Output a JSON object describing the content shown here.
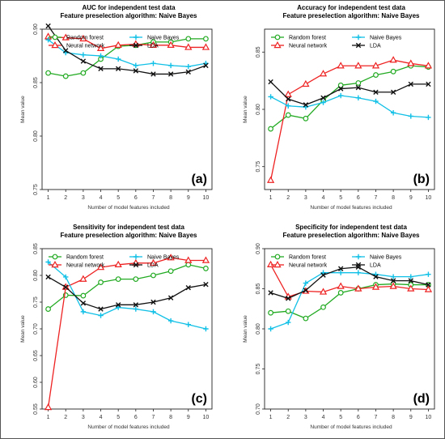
{
  "chart_data": [
    {
      "type": "line",
      "title": "AUC for independent test data",
      "subtitle": "Feature preselection algorithm: Naive Bayes",
      "xlabel": "Number of model features included",
      "ylabel": "Mean value",
      "panel_label": "(a)",
      "x": [
        1,
        2,
        3,
        4,
        5,
        6,
        7,
        8,
        9,
        10
      ],
      "ylim": [
        0.75,
        0.9
      ],
      "yticks": [
        "0.75",
        "0.80",
        "0.85",
        "0.90"
      ],
      "legend_position": "top",
      "grid": false,
      "series": [
        {
          "name": "Random forest",
          "color": "#22aa22",
          "marker": "circle",
          "values": [
            0.859,
            0.856,
            0.859,
            0.872,
            0.884,
            0.885,
            0.888,
            0.888,
            0.891,
            0.891
          ]
        },
        {
          "name": "Neural network",
          "color": "#ee2222",
          "marker": "triangle",
          "values": [
            0.893,
            0.892,
            0.891,
            0.882,
            0.885,
            0.886,
            0.885,
            0.885,
            0.883,
            0.883
          ]
        },
        {
          "name": "Naive Bayes",
          "color": "#11c0e6",
          "marker": "plus",
          "values": [
            0.89,
            0.878,
            0.876,
            0.875,
            0.872,
            0.866,
            0.868,
            0.866,
            0.865,
            0.868
          ]
        },
        {
          "name": "LDA",
          "color": "#111111",
          "marker": "cross",
          "values": [
            0.903,
            0.88,
            0.87,
            0.863,
            0.863,
            0.861,
            0.858,
            0.858,
            0.86,
            0.866
          ]
        }
      ]
    },
    {
      "type": "line",
      "title": "Accuracy for independent test data",
      "subtitle": "Feature preselection algorithm: Naive Bayes",
      "xlabel": "Number of model features included",
      "ylabel": "Mean value",
      "panel_label": "(b)",
      "x": [
        1,
        2,
        3,
        4,
        5,
        6,
        7,
        8,
        9,
        10
      ],
      "ylim": [
        0.73,
        0.87
      ],
      "yticks": [
        "0.75",
        "0.80",
        "0.85"
      ],
      "legend_position": "top",
      "grid": false,
      "series": [
        {
          "name": "Random forest",
          "color": "#22aa22",
          "marker": "circle",
          "values": [
            0.783,
            0.795,
            0.792,
            0.808,
            0.821,
            0.823,
            0.83,
            0.833,
            0.838,
            0.837
          ]
        },
        {
          "name": "Neural network",
          "color": "#ee2222",
          "marker": "triangle",
          "values": [
            0.738,
            0.813,
            0.822,
            0.831,
            0.838,
            0.838,
            0.838,
            0.843,
            0.84,
            0.838
          ]
        },
        {
          "name": "Naive Bayes",
          "color": "#11c0e6",
          "marker": "plus",
          "values": [
            0.811,
            0.803,
            0.802,
            0.806,
            0.812,
            0.81,
            0.807,
            0.797,
            0.794,
            0.793
          ]
        },
        {
          "name": "LDA",
          "color": "#111111",
          "marker": "cross",
          "values": [
            0.824,
            0.809,
            0.804,
            0.81,
            0.818,
            0.819,
            0.815,
            0.815,
            0.822,
            0.822
          ]
        }
      ]
    },
    {
      "type": "line",
      "title": "Sensitivity for independent test data",
      "subtitle": "Feature preselection algorithm: Naive Bayes",
      "xlabel": "Number of model features included",
      "ylabel": "Mean value",
      "panel_label": "(c)",
      "x": [
        1,
        2,
        3,
        4,
        5,
        6,
        7,
        8,
        9,
        10
      ],
      "ylim": [
        0.55,
        0.85
      ],
      "yticks": [
        "0.55",
        "0.60",
        "0.65",
        "0.70",
        "0.75",
        "0.80",
        "0.85"
      ],
      "legend_position": "top",
      "grid": false,
      "series": [
        {
          "name": "Random forest",
          "color": "#22aa22",
          "marker": "circle",
          "values": [
            0.737,
            0.763,
            0.762,
            0.787,
            0.793,
            0.793,
            0.8,
            0.808,
            0.82,
            0.813
          ]
        },
        {
          "name": "Neural network",
          "color": "#ee2222",
          "marker": "triangle",
          "values": [
            0.553,
            0.778,
            0.793,
            0.815,
            0.82,
            0.823,
            0.823,
            0.833,
            0.828,
            0.828
          ]
        },
        {
          "name": "Naive Bayes",
          "color": "#11c0e6",
          "marker": "plus",
          "values": [
            0.825,
            0.797,
            0.732,
            0.725,
            0.74,
            0.737,
            0.732,
            0.715,
            0.708,
            0.7
          ]
        },
        {
          "name": "LDA",
          "color": "#111111",
          "marker": "cross",
          "values": [
            0.797,
            0.778,
            0.748,
            0.737,
            0.745,
            0.745,
            0.75,
            0.758,
            0.777,
            0.783
          ]
        }
      ]
    },
    {
      "type": "line",
      "title": "Specificity for independent test data",
      "subtitle": "Feature preselection algorithm: Naive Bayes",
      "xlabel": "Number of model features included",
      "ylabel": "Mean value",
      "panel_label": "(d)",
      "x": [
        1,
        2,
        3,
        4,
        5,
        6,
        7,
        8,
        9,
        10
      ],
      "ylim": [
        0.7,
        0.9
      ],
      "yticks": [
        "0.70",
        "0.75",
        "0.80",
        "0.85",
        "0.90"
      ],
      "legend_position": "top",
      "grid": false,
      "series": [
        {
          "name": "Random forest",
          "color": "#22aa22",
          "marker": "circle",
          "values": [
            0.82,
            0.822,
            0.813,
            0.827,
            0.845,
            0.85,
            0.855,
            0.856,
            0.855,
            0.855
          ]
        },
        {
          "name": "Neural network",
          "color": "#ee2222",
          "marker": "triangle",
          "values": [
            0.88,
            0.84,
            0.847,
            0.846,
            0.853,
            0.85,
            0.852,
            0.853,
            0.85,
            0.849
          ]
        },
        {
          "name": "Naive Bayes",
          "color": "#11c0e6",
          "marker": "plus",
          "values": [
            0.8,
            0.808,
            0.857,
            0.87,
            0.87,
            0.87,
            0.868,
            0.865,
            0.865,
            0.868
          ]
        },
        {
          "name": "LDA",
          "color": "#111111",
          "marker": "cross",
          "values": [
            0.845,
            0.838,
            0.848,
            0.867,
            0.875,
            0.877,
            0.865,
            0.86,
            0.86,
            0.855
          ]
        }
      ]
    }
  ]
}
